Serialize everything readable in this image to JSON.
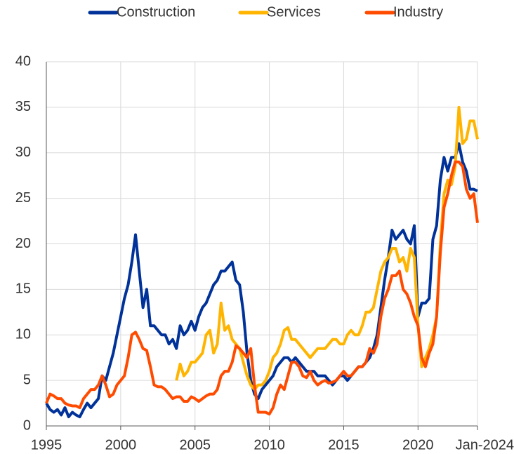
{
  "chart_data": {
    "type": "line",
    "x": [
      1995,
      1995.25,
      1995.5,
      1995.75,
      1996,
      1996.25,
      1996.5,
      1996.75,
      1997,
      1997.25,
      1997.5,
      1997.75,
      1998,
      1998.25,
      1998.5,
      1998.75,
      1999,
      1999.25,
      1999.5,
      1999.75,
      2000,
      2000.25,
      2000.5,
      2000.75,
      2001,
      2001.25,
      2001.5,
      2001.75,
      2002,
      2002.25,
      2002.5,
      2002.75,
      2003,
      2003.25,
      2003.5,
      2003.75,
      2004,
      2004.25,
      2004.5,
      2004.75,
      2005,
      2005.25,
      2005.5,
      2005.75,
      2006,
      2006.25,
      2006.5,
      2006.75,
      2007,
      2007.25,
      2007.5,
      2007.75,
      2008,
      2008.25,
      2008.5,
      2008.75,
      2009,
      2009.25,
      2009.5,
      2009.75,
      2010,
      2010.25,
      2010.5,
      2010.75,
      2011,
      2011.25,
      2011.5,
      2011.75,
      2012,
      2012.25,
      2012.5,
      2012.75,
      2013,
      2013.25,
      2013.5,
      2013.75,
      2014,
      2014.25,
      2014.5,
      2014.75,
      2015,
      2015.25,
      2015.5,
      2015.75,
      2016,
      2016.25,
      2016.5,
      2016.75,
      2017,
      2017.25,
      2017.5,
      2017.75,
      2018,
      2018.25,
      2018.5,
      2018.75,
      2019,
      2019.25,
      2019.5,
      2019.75,
      2020,
      2020.25,
      2020.5,
      2020.75,
      2021,
      2021.25,
      2021.5,
      2021.75,
      2022,
      2022.25,
      2022.5,
      2022.75,
      2023,
      2023.25,
      2023.5,
      2023.75,
      2024
    ],
    "series": [
      {
        "name": "Construction",
        "color": "#003299",
        "values": [
          2.5,
          1.8,
          1.5,
          1.8,
          1.2,
          2.0,
          1.0,
          1.5,
          1.2,
          1.0,
          1.8,
          2.5,
          2.0,
          2.5,
          3.0,
          5.5,
          5.0,
          6.5,
          8.0,
          10.0,
          12.0,
          14.0,
          15.5,
          18.0,
          21.0,
          17.0,
          13.0,
          15.0,
          11.0,
          11.0,
          10.5,
          10.0,
          10.0,
          9.0,
          9.5,
          8.5,
          11.0,
          10.0,
          10.5,
          11.5,
          10.5,
          12.0,
          13.0,
          13.5,
          14.5,
          15.5,
          16.0,
          17.0,
          17.0,
          17.5,
          18.0,
          16.0,
          15.5,
          12.5,
          8.0,
          5.0,
          3.5,
          3.0,
          4.0,
          4.5,
          5.0,
          5.5,
          6.5,
          7.0,
          7.5,
          7.5,
          7.0,
          7.5,
          7.0,
          6.5,
          6.0,
          6.0,
          6.0,
          5.5,
          5.5,
          5.5,
          5.0,
          4.5,
          5.0,
          5.5,
          5.5,
          5.0,
          5.5,
          6.0,
          6.5,
          6.5,
          7.0,
          7.5,
          8.5,
          10.0,
          13.0,
          16.0,
          18.5,
          21.5,
          20.5,
          21.0,
          21.5,
          20.5,
          20.0,
          22.0,
          12.0,
          13.5,
          13.5,
          14.0,
          20.5,
          22.0,
          27.0,
          29.5,
          28.0,
          29.5,
          29.5,
          31.0,
          29.0,
          28.0,
          26.0,
          26.0,
          25.8
        ]
      },
      {
        "name": "Services",
        "color": "#ffb400",
        "values": [
          null,
          null,
          null,
          null,
          null,
          null,
          null,
          null,
          null,
          null,
          null,
          null,
          null,
          null,
          null,
          null,
          null,
          null,
          null,
          null,
          null,
          null,
          null,
          null,
          null,
          null,
          null,
          null,
          null,
          null,
          null,
          null,
          null,
          null,
          null,
          5.0,
          6.8,
          5.5,
          6.0,
          7.0,
          7.0,
          7.5,
          8.0,
          10.0,
          10.5,
          8.0,
          9.0,
          13.5,
          10.5,
          11.0,
          9.5,
          9.0,
          8.5,
          7.0,
          5.5,
          4.5,
          4.0,
          4.5,
          4.5,
          5.0,
          6.0,
          7.5,
          8.0,
          9.0,
          10.5,
          10.8,
          9.5,
          9.5,
          9.0,
          8.5,
          8.0,
          7.5,
          8.0,
          8.5,
          8.5,
          8.5,
          9.0,
          9.5,
          9.5,
          9.0,
          9.0,
          10.0,
          10.5,
          10.0,
          10.0,
          11.0,
          12.5,
          12.5,
          13.0,
          15.0,
          17.0,
          18.0,
          18.5,
          19.5,
          19.5,
          18.0,
          18.5,
          17.0,
          19.5,
          18.5,
          11.0,
          6.5,
          7.5,
          8.5,
          10.0,
          12.0,
          20.0,
          25.5,
          27.0,
          26.5,
          28.5,
          35.0,
          31.0,
          31.5,
          33.5,
          33.5,
          31.5
        ]
      },
      {
        "name": "Industry",
        "color": "#ff4b00",
        "values": [
          2.5,
          3.5,
          3.3,
          3.0,
          3.0,
          2.5,
          2.3,
          2.2,
          2.2,
          2.0,
          3.0,
          3.5,
          4.0,
          4.0,
          4.5,
          5.5,
          4.5,
          3.2,
          3.5,
          4.5,
          5.0,
          5.5,
          7.5,
          10.0,
          10.3,
          9.5,
          8.5,
          8.3,
          6.5,
          4.5,
          4.3,
          4.3,
          4.0,
          3.5,
          3.0,
          3.2,
          3.2,
          2.7,
          2.7,
          3.2,
          3.0,
          2.7,
          3.0,
          3.3,
          3.5,
          3.5,
          4.0,
          5.5,
          6.0,
          6.0,
          7.0,
          8.8,
          8.5,
          8.0,
          7.5,
          8.5,
          4.5,
          1.5,
          1.5,
          1.5,
          1.3,
          2.0,
          3.5,
          4.5,
          4.0,
          5.5,
          7.0,
          7.0,
          6.5,
          5.5,
          5.3,
          6.0,
          5.0,
          4.5,
          4.8,
          5.0,
          4.7,
          4.8,
          5.0,
          5.5,
          6.0,
          5.5,
          5.5,
          6.0,
          6.5,
          6.5,
          7.0,
          8.5,
          8.0,
          9.0,
          12.0,
          14.0,
          15.0,
          16.5,
          16.5,
          17.0,
          15.0,
          14.5,
          13.5,
          12.0,
          11.0,
          7.5,
          6.5,
          8.0,
          9.0,
          12.0,
          19.0,
          24.0,
          25.5,
          27.5,
          29.0,
          29.0,
          28.5,
          26.0,
          25.0,
          25.5,
          22.3
        ]
      }
    ],
    "xlim": [
      1995,
      2024
    ],
    "xticks": [
      1995,
      2000,
      2005,
      2010,
      2015,
      2020,
      {
        "value": 2024,
        "label": "Jan-2024"
      }
    ],
    "ylim": [
      0,
      40
    ],
    "yticks": [
      0,
      5,
      10,
      15,
      20,
      25,
      30,
      35,
      40
    ],
    "grid": true
  }
}
